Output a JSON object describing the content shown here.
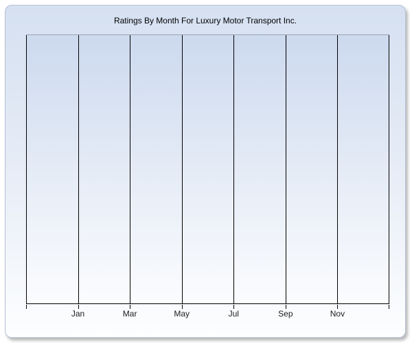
{
  "panel": {
    "title": "Ratings By Month For Luxury Motor Transport Inc."
  },
  "chart_data": {
    "type": "line",
    "title": "Ratings By Month For Luxury Motor Transport Inc.",
    "x_tick_labels": [
      "Jan",
      "Mar",
      "May",
      "Jul",
      "Sep",
      "Nov"
    ],
    "y_tick_labels": [],
    "series": [],
    "plot_empty": true,
    "x_gridline_count": 8,
    "grid": "vertical-only",
    "legend": "none",
    "xlabel": "",
    "ylabel": ""
  },
  "colors": {
    "page_bg": "#ffffff",
    "panel_gradient_top": "#d5e0f1",
    "panel_gradient_bottom": "#fdfeff",
    "panel_border": "#b5c1d5",
    "plot_gradient_top": "#ccd9ee",
    "plot_gradient_bottom": "#fbfcfe",
    "plot_top_border": "#9aa5b5",
    "gridline": "#000000",
    "axis_line": "#000000",
    "tick_label": "#1c1c1c",
    "title_color": "#000000"
  }
}
